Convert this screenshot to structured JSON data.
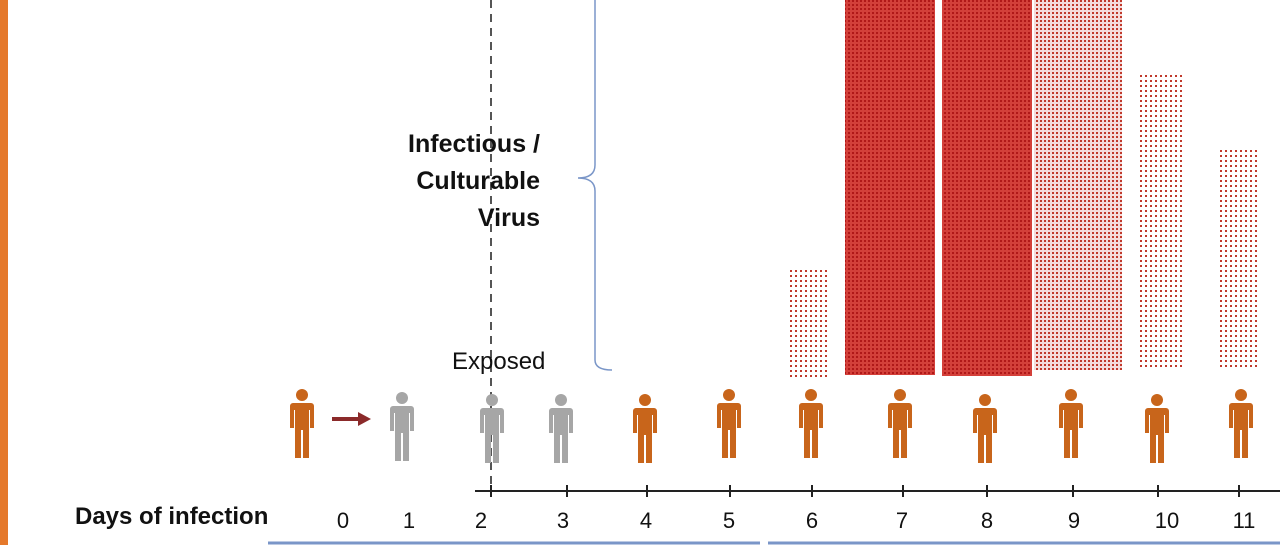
{
  "label": {
    "lines": [
      "Infectious /",
      "Culturable",
      "Virus"
    ]
  },
  "exposed": "Exposed",
  "axis": {
    "title": "Days of infection",
    "days": [
      0,
      1,
      2,
      3,
      4,
      5,
      6,
      7,
      8,
      9,
      10,
      11
    ]
  }
}
